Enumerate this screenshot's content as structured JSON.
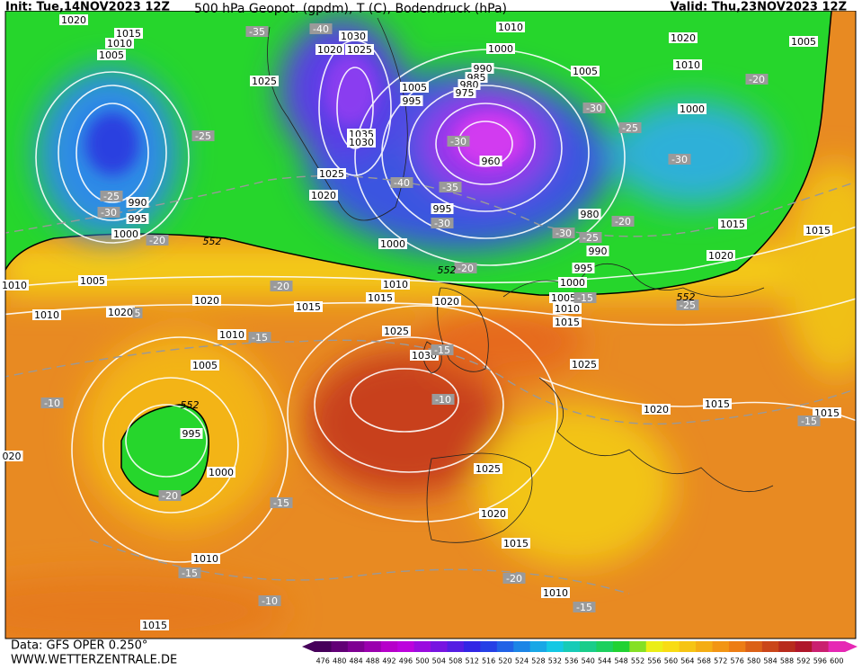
{
  "header": {
    "init": "Init: Tue,14NOV2023 12Z",
    "title": "500 hPa Geopot. (gpdm), T (C), Bodendruck (hPa)",
    "valid": "Valid: Thu,23NOV2023 12Z"
  },
  "footer": {
    "data": "Data: GFS OPER 0.250°",
    "site": "WWW.WETTERZENTRALE.DE"
  },
  "colorbar": {
    "labels": [
      476,
      480,
      484,
      488,
      492,
      496,
      500,
      504,
      508,
      512,
      516,
      520,
      524,
      528,
      532,
      536,
      540,
      544,
      548,
      552,
      556,
      560,
      564,
      568,
      572,
      576,
      580,
      584,
      588,
      592,
      596,
      600
    ]
  },
  "map": {
    "pressure_labels": [
      "1020",
      "1015",
      "1010",
      "1005",
      "1025",
      "1030",
      "1020",
      "1025",
      "1010",
      "1000",
      "1020",
      "1010",
      "1005",
      "1005",
      "1000",
      "990",
      "985",
      "980",
      "975",
      "1005",
      "995",
      "1035",
      "1030",
      "960",
      "1025",
      "1020",
      "995",
      "990",
      "995",
      "1000",
      "1000",
      "980",
      "990",
      "995",
      "1015",
      "1015",
      "1020",
      "1005",
      "1010",
      "1010",
      "1020",
      "1020",
      "1015",
      "1010",
      "1015",
      "1020",
      "1005",
      "1010",
      "1015",
      "1000",
      "1025",
      "1030",
      "1010",
      "1005",
      "1025",
      "1020",
      "1015",
      "1015",
      "995",
      "1000",
      "1025",
      "1020",
      "1015",
      "1010",
      "1010",
      "1015",
      "020"
    ],
    "temperature_labels": [
      "-35",
      "-40",
      "-25",
      "-25",
      "-30",
      "-20",
      "-40",
      "-35",
      "-30",
      "-30",
      "-25",
      "-30",
      "-20",
      "-30",
      "-20",
      "-30",
      "-25",
      "-20",
      "-20",
      "-15",
      "-25",
      "-15",
      "-15",
      "-10",
      "-10",
      "-15",
      "-20",
      "-15",
      "-15",
      "-10",
      "-20",
      "-15",
      "5"
    ],
    "geopotential_labels": [
      "552",
      "552",
      "552",
      "552"
    ]
  }
}
